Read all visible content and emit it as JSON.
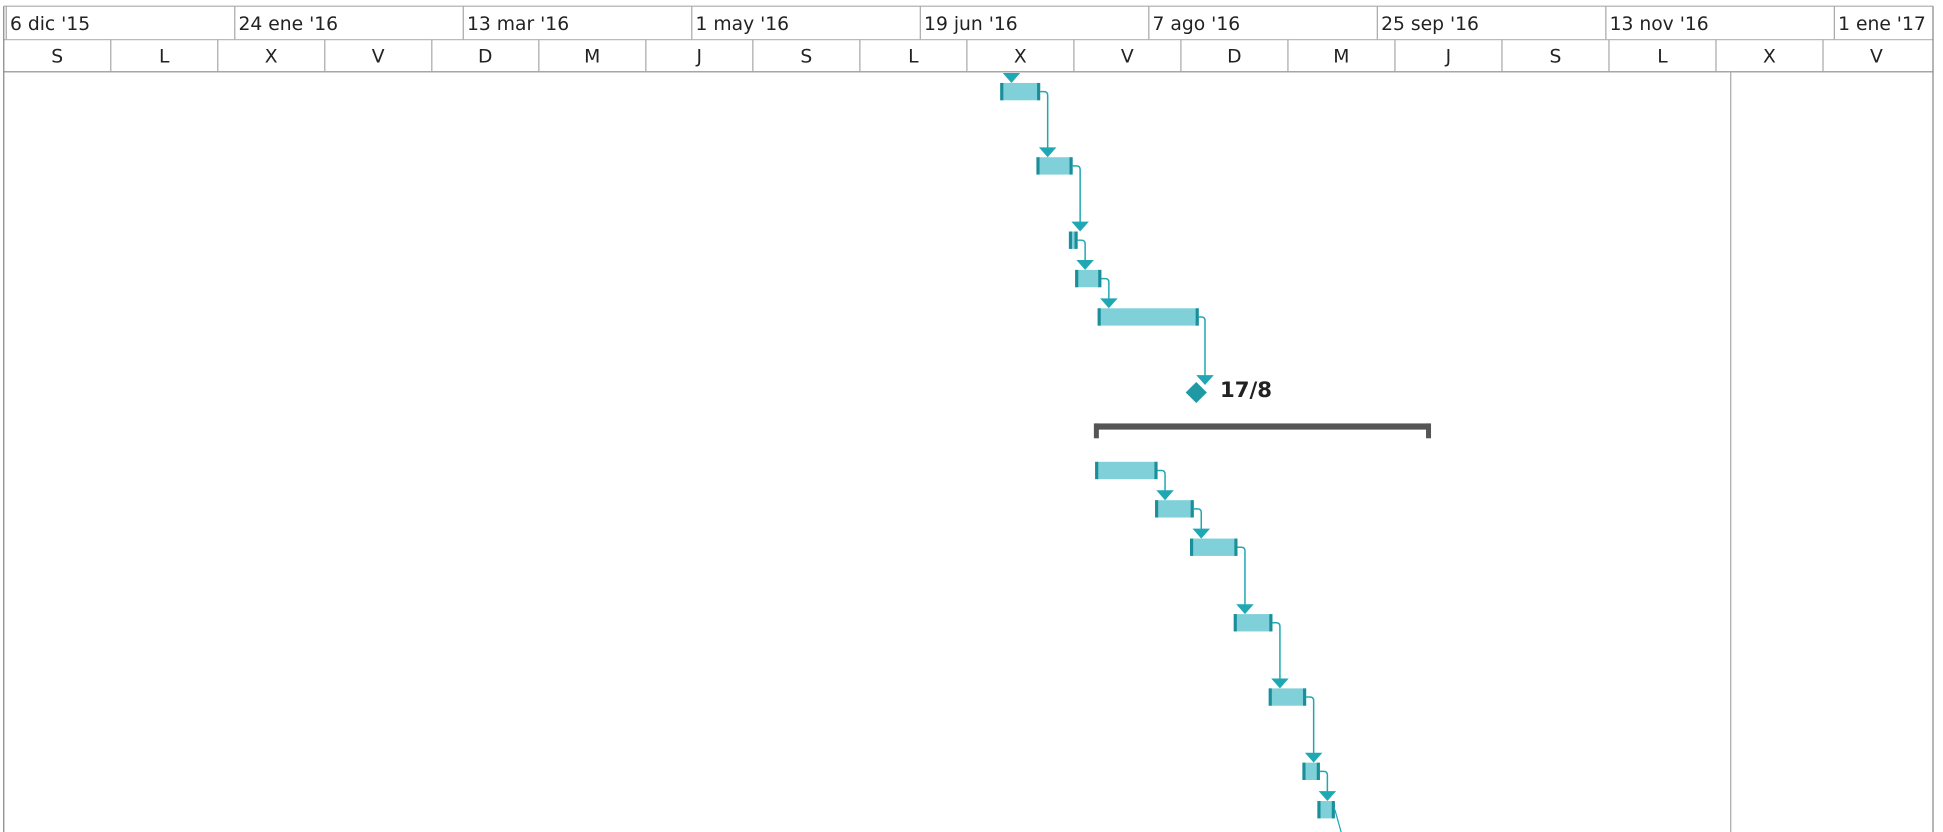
{
  "timescale": {
    "top": [
      "6 dic '15",
      "24 ene '16",
      "13 mar '16",
      "1 may '16",
      "19 jun '16",
      "7 ago '16",
      "25 sep '16",
      "13 nov '16",
      "1 ene '17"
    ],
    "bottom": [
      "S",
      "L",
      "X",
      "V",
      "D",
      "M",
      "J",
      "S",
      "L",
      "X",
      "V",
      "D",
      "M",
      "J",
      "S",
      "L",
      "X",
      "V"
    ]
  },
  "milestone": {
    "label": "17/8"
  }
}
